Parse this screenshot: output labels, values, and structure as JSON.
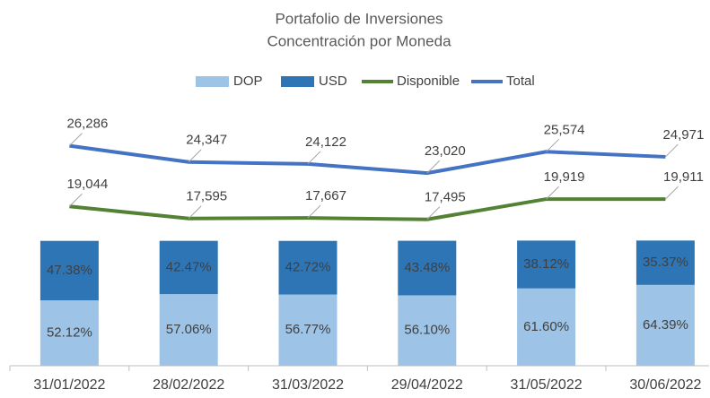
{
  "chart_data": {
    "type": "bar",
    "title": "Portafolio de Inversiones",
    "subtitle": "Concentración por Moneda",
    "categories": [
      "31/01/2022",
      "28/02/2022",
      "31/03/2022",
      "29/04/2022",
      "31/05/2022",
      "30/06/2022"
    ],
    "ylim": [
      0,
      200
    ],
    "y2lim": [
      0,
      30000
    ],
    "legend": "top",
    "series": [
      {
        "name": "DOP",
        "type": "bar",
        "stacked": true,
        "color": "#9dc3e6",
        "values": [
          52.12,
          57.06,
          56.77,
          56.1,
          61.6,
          64.39
        ],
        "value_labels": [
          "52.12%",
          "57.06%",
          "56.77%",
          "56.10%",
          "61.60%",
          "64.39%"
        ]
      },
      {
        "name": "USD",
        "type": "bar",
        "stacked": true,
        "color": "#2e75b6",
        "values": [
          47.38,
          42.47,
          42.72,
          43.48,
          38.12,
          35.37
        ],
        "value_labels": [
          "47.38%",
          "42.47%",
          "42.72%",
          "43.48%",
          "38.12%",
          "35.37%"
        ]
      },
      {
        "name": "Disponible",
        "type": "line",
        "axis": "y2",
        "color": "#548235",
        "values": [
          19044,
          17595,
          17667,
          17495,
          19919,
          19911
        ],
        "value_labels": [
          "19,044",
          "17,595",
          "17,667",
          "17,495",
          "19,919",
          "19,911"
        ]
      },
      {
        "name": "Total",
        "type": "line",
        "axis": "y2",
        "color": "#4472c4",
        "values": [
          26286,
          24347,
          24122,
          23020,
          25574,
          24971
        ],
        "value_labels": [
          "26,286",
          "24,347",
          "24,122",
          "23,020",
          "25,574",
          "24,971"
        ]
      }
    ]
  }
}
